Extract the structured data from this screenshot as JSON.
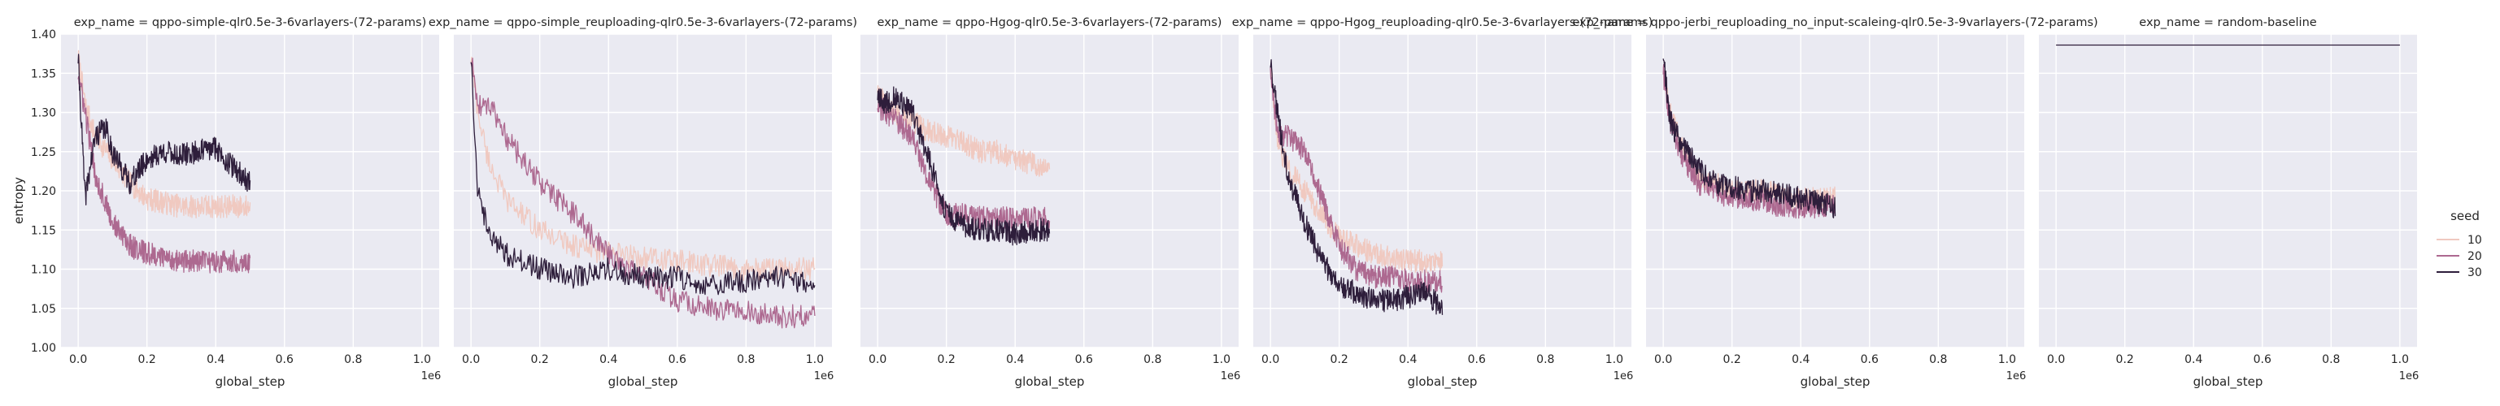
{
  "chart_data": {
    "type": "line",
    "ylabel": "entropy",
    "xlabel": "global_step",
    "x_offset_label": "1e6",
    "xlim": [
      0,
      1.0
    ],
    "ylim": [
      1.0,
      1.4
    ],
    "xticks": [
      "0.0",
      "0.2",
      "0.4",
      "0.6",
      "0.8",
      "1.0"
    ],
    "yticks": [
      "1.00",
      "1.05",
      "1.10",
      "1.15",
      "1.20",
      "1.25",
      "1.30",
      "1.35",
      "1.40"
    ],
    "grid": true,
    "legend": {
      "title": "seed",
      "placement": "right",
      "entries": [
        {
          "label": "10",
          "color": "#f0c9c0"
        },
        {
          "label": "20",
          "color": "#ad6990"
        },
        {
          "label": "30",
          "color": "#2e1e3b"
        }
      ]
    },
    "panels": [
      {
        "title": "exp_name = qppo-simple-qlr0.5e-3-6varlayers-(72-params)",
        "series": [
          {
            "name": "10",
            "x": [
              0.0,
              0.02,
              0.05,
              0.1,
              0.15,
              0.2,
              0.25,
              0.3,
              0.35,
              0.4,
              0.45,
              0.5
            ],
            "y": [
              1.37,
              1.31,
              1.27,
              1.24,
              1.21,
              1.19,
              1.185,
              1.18,
              1.18,
              1.18,
              1.18,
              1.18
            ]
          },
          {
            "name": "20",
            "x": [
              0.0,
              0.02,
              0.05,
              0.1,
              0.15,
              0.2,
              0.25,
              0.3,
              0.35,
              0.4,
              0.45,
              0.5
            ],
            "y": [
              1.35,
              1.3,
              1.22,
              1.16,
              1.13,
              1.12,
              1.115,
              1.11,
              1.11,
              1.11,
              1.11,
              1.11
            ]
          },
          {
            "name": "30",
            "x": [
              0.0,
              0.02,
              0.05,
              0.08,
              0.1,
              0.15,
              0.2,
              0.25,
              0.3,
              0.35,
              0.4,
              0.45,
              0.5
            ],
            "y": [
              1.37,
              1.19,
              1.27,
              1.28,
              1.25,
              1.21,
              1.24,
              1.25,
              1.245,
              1.25,
              1.255,
              1.23,
              1.21
            ]
          }
        ]
      },
      {
        "title": "exp_name = qppo-simple_reuploading-qlr0.5e-3-6varlayers-(72-params)",
        "series": [
          {
            "name": "10",
            "x": [
              0.0,
              0.02,
              0.05,
              0.1,
              0.2,
              0.3,
              0.4,
              0.5,
              0.6,
              0.7,
              0.8,
              0.9,
              1.0
            ],
            "y": [
              1.37,
              1.3,
              1.24,
              1.19,
              1.15,
              1.13,
              1.12,
              1.115,
              1.11,
              1.105,
              1.1,
              1.1,
              1.1
            ]
          },
          {
            "name": "20",
            "x": [
              0.0,
              0.02,
              0.05,
              0.08,
              0.1,
              0.2,
              0.3,
              0.4,
              0.5,
              0.6,
              0.7,
              0.8,
              0.9,
              1.0
            ],
            "y": [
              1.37,
              1.31,
              1.31,
              1.29,
              1.27,
              1.21,
              1.17,
              1.12,
              1.09,
              1.06,
              1.05,
              1.045,
              1.04,
              1.04
            ]
          },
          {
            "name": "30",
            "x": [
              0.0,
              0.02,
              0.05,
              0.1,
              0.2,
              0.3,
              0.4,
              0.5,
              0.6,
              0.7,
              0.8,
              0.9,
              1.0
            ],
            "y": [
              1.37,
              1.2,
              1.15,
              1.12,
              1.1,
              1.09,
              1.1,
              1.09,
              1.09,
              1.08,
              1.085,
              1.09,
              1.08
            ]
          }
        ]
      },
      {
        "title": "exp_name = qppo-Hgog-qlr0.5e-3-6varlayers-(72-params)",
        "series": [
          {
            "name": "10",
            "x": [
              0.0,
              0.02,
              0.05,
              0.1,
              0.15,
              0.2,
              0.25,
              0.3,
              0.35,
              0.4,
              0.45,
              0.5
            ],
            "y": [
              1.33,
              1.31,
              1.3,
              1.29,
              1.275,
              1.27,
              1.26,
              1.25,
              1.25,
              1.24,
              1.235,
              1.23
            ]
          },
          {
            "name": "20",
            "x": [
              0.0,
              0.02,
              0.05,
              0.1,
              0.15,
              0.2,
              0.25,
              0.3,
              0.35,
              0.4,
              0.45,
              0.5
            ],
            "y": [
              1.31,
              1.3,
              1.29,
              1.27,
              1.21,
              1.17,
              1.17,
              1.165,
              1.165,
              1.165,
              1.165,
              1.165
            ]
          },
          {
            "name": "30",
            "x": [
              0.0,
              0.02,
              0.05,
              0.1,
              0.15,
              0.2,
              0.25,
              0.3,
              0.35,
              0.4,
              0.45,
              0.5
            ],
            "y": [
              1.32,
              1.31,
              1.32,
              1.3,
              1.24,
              1.17,
              1.155,
              1.15,
              1.15,
              1.145,
              1.15,
              1.15
            ]
          }
        ]
      },
      {
        "title": "exp_name = qppo-Hgog_reuploading-qlr0.5e-3-6varlayers-(72-params)",
        "series": [
          {
            "name": "10",
            "x": [
              0.0,
              0.02,
              0.05,
              0.1,
              0.15,
              0.2,
              0.25,
              0.3,
              0.35,
              0.4,
              0.45,
              0.5
            ],
            "y": [
              1.36,
              1.26,
              1.23,
              1.2,
              1.17,
              1.14,
              1.13,
              1.12,
              1.115,
              1.11,
              1.11,
              1.11
            ]
          },
          {
            "name": "20",
            "x": [
              0.0,
              0.02,
              0.05,
              0.1,
              0.15,
              0.2,
              0.25,
              0.3,
              0.35,
              0.4,
              0.45,
              0.5
            ],
            "y": [
              1.36,
              1.27,
              1.27,
              1.25,
              1.19,
              1.13,
              1.1,
              1.09,
              1.09,
              1.085,
              1.085,
              1.085
            ]
          },
          {
            "name": "30",
            "x": [
              0.0,
              0.02,
              0.05,
              0.1,
              0.15,
              0.2,
              0.25,
              0.3,
              0.35,
              0.4,
              0.45,
              0.5
            ],
            "y": [
              1.36,
              1.3,
              1.22,
              1.16,
              1.11,
              1.08,
              1.07,
              1.06,
              1.06,
              1.065,
              1.07,
              1.05
            ]
          }
        ]
      },
      {
        "title": "exp_name = qppo-jerbi_reuploading_no_input-scaleing-qlr0.5e-3-9varlayers-(72-params)",
        "series": [
          {
            "name": "10",
            "x": [
              0.0,
              0.02,
              0.05,
              0.1,
              0.15,
              0.2,
              0.25,
              0.3,
              0.35,
              0.4,
              0.45,
              0.5
            ],
            "y": [
              1.36,
              1.3,
              1.26,
              1.22,
              1.21,
              1.2,
              1.2,
              1.2,
              1.19,
              1.19,
              1.19,
              1.19
            ]
          },
          {
            "name": "20",
            "x": [
              0.0,
              0.02,
              0.05,
              0.1,
              0.15,
              0.2,
              0.25,
              0.3,
              0.35,
              0.4,
              0.45,
              0.5
            ],
            "y": [
              1.35,
              1.29,
              1.25,
              1.21,
              1.2,
              1.19,
              1.19,
              1.185,
              1.18,
              1.18,
              1.18,
              1.18
            ]
          },
          {
            "name": "30",
            "x": [
              0.0,
              0.02,
              0.05,
              0.1,
              0.15,
              0.2,
              0.25,
              0.3,
              0.35,
              0.4,
              0.45,
              0.5
            ],
            "y": [
              1.37,
              1.29,
              1.26,
              1.23,
              1.21,
              1.205,
              1.2,
              1.2,
              1.195,
              1.19,
              1.185,
              1.18
            ]
          }
        ]
      },
      {
        "title": "exp_name = random-baseline",
        "series": [
          {
            "name": "30",
            "x": [
              0.0,
              1.0
            ],
            "y": [
              1.386,
              1.386
            ]
          }
        ]
      }
    ]
  }
}
